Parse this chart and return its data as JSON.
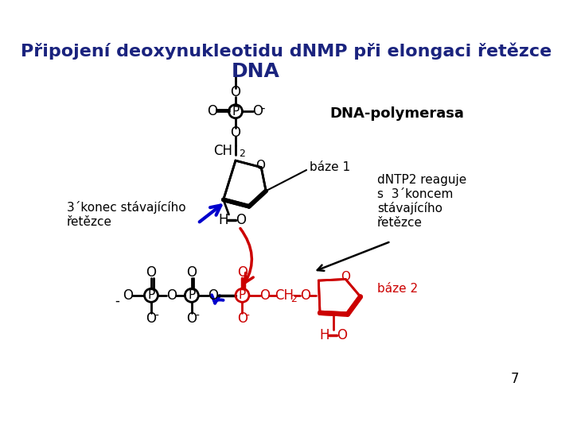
{
  "title_line1": "Připojení deoxynukleotidu dNMP při elongaci řetězce",
  "title_line2": "DNA",
  "title_color": "#1a237e",
  "title_fontsize": 16,
  "dna_polymerasa_text": "DNA-polymerasa",
  "label_3konec": "3´konec stávajícího\nřetězce",
  "label_dntp2": "dNTP2 reaguje\ns  3´koncem\nstávajícího\nřetězce",
  "label_baze1": "báze 1",
  "label_baze2": "báze 2",
  "baze2_color": "#cc0000",
  "page_number": "7",
  "bg_color": "#ffffff",
  "black": "#000000",
  "red": "#cc0000",
  "blue": "#0000cc"
}
